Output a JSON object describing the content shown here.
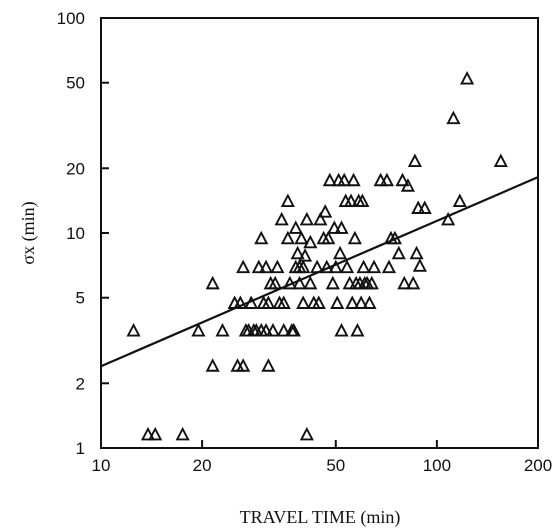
{
  "chart_data": {
    "type": "scatter",
    "xscale": "log",
    "yscale": "log",
    "xlim": [
      10,
      200
    ],
    "ylim": [
      1,
      100
    ],
    "xticks": [
      10,
      20,
      50,
      100,
      200
    ],
    "yticks": [
      1,
      2,
      5,
      10,
      20,
      50,
      100
    ],
    "xlabel": "TRAVEL TIME (min)",
    "ylabel": "σx (min)",
    "grid": false,
    "marker": "open-triangle",
    "points": [
      [
        12.5,
        3.5
      ],
      [
        13.8,
        1.15
      ],
      [
        14.5,
        1.15
      ],
      [
        17.5,
        1.15
      ],
      [
        19.5,
        3.5
      ],
      [
        21.5,
        5.8
      ],
      [
        21.5,
        2.4
      ],
      [
        23.0,
        3.5
      ],
      [
        25.0,
        4.7
      ],
      [
        25.5,
        2.4
      ],
      [
        26.0,
        4.7
      ],
      [
        26.5,
        6.9
      ],
      [
        26.5,
        2.4
      ],
      [
        27.0,
        3.5
      ],
      [
        27.5,
        3.5
      ],
      [
        28.0,
        4.7
      ],
      [
        28.5,
        3.5
      ],
      [
        29.0,
        3.5
      ],
      [
        29.5,
        6.9
      ],
      [
        30.0,
        9.4
      ],
      [
        30.0,
        3.5
      ],
      [
        30.5,
        4.7
      ],
      [
        31.0,
        6.9
      ],
      [
        31.0,
        3.5
      ],
      [
        31.5,
        4.7
      ],
      [
        31.5,
        2.4
      ],
      [
        32.0,
        5.8
      ],
      [
        32.5,
        3.5
      ],
      [
        33.0,
        5.8
      ],
      [
        33.5,
        6.9
      ],
      [
        34.0,
        4.7
      ],
      [
        34.5,
        11.5
      ],
      [
        35.0,
        4.7
      ],
      [
        35.0,
        3.5
      ],
      [
        36.0,
        14.0
      ],
      [
        36.0,
        9.4
      ],
      [
        36.5,
        5.8
      ],
      [
        37.0,
        3.5
      ],
      [
        37.5,
        3.5
      ],
      [
        38.0,
        6.9
      ],
      [
        38.0,
        10.5
      ],
      [
        38.5,
        8.0
      ],
      [
        39.0,
        6.9
      ],
      [
        39.0,
        5.8
      ],
      [
        39.5,
        9.4
      ],
      [
        40.0,
        6.9
      ],
      [
        40.0,
        4.7
      ],
      [
        40.5,
        7.8
      ],
      [
        41.0,
        1.15
      ],
      [
        41.0,
        11.5
      ],
      [
        42.0,
        9.0
      ],
      [
        42.0,
        5.8
      ],
      [
        43.0,
        4.7
      ],
      [
        44.0,
        6.9
      ],
      [
        44.5,
        4.7
      ],
      [
        45.0,
        11.5
      ],
      [
        46.0,
        9.4
      ],
      [
        46.5,
        12.5
      ],
      [
        47.0,
        6.9
      ],
      [
        47.5,
        9.4
      ],
      [
        48.0,
        17.5
      ],
      [
        49.0,
        5.8
      ],
      [
        49.5,
        10.5
      ],
      [
        50.0,
        6.9
      ],
      [
        50.5,
        4.7
      ],
      [
        51.0,
        17.5
      ],
      [
        51.5,
        8.0
      ],
      [
        52.0,
        10.5
      ],
      [
        52.0,
        3.5
      ],
      [
        53.0,
        17.5
      ],
      [
        53.5,
        14.0
      ],
      [
        54.0,
        6.9
      ],
      [
        55.0,
        5.8
      ],
      [
        55.5,
        14.0
      ],
      [
        56.0,
        4.7
      ],
      [
        56.5,
        17.5
      ],
      [
        57.0,
        9.4
      ],
      [
        57.5,
        5.8
      ],
      [
        58.0,
        3.5
      ],
      [
        58.5,
        14.0
      ],
      [
        59.0,
        5.8
      ],
      [
        59.5,
        4.7
      ],
      [
        60.0,
        14.0
      ],
      [
        60.5,
        6.9
      ],
      [
        61.0,
        5.8
      ],
      [
        62.0,
        5.8
      ],
      [
        63.0,
        4.7
      ],
      [
        64.0,
        5.8
      ],
      [
        65.0,
        6.9
      ],
      [
        68.0,
        17.5
      ],
      [
        71.0,
        17.5
      ],
      [
        72.0,
        6.9
      ],
      [
        73.0,
        9.4
      ],
      [
        75.0,
        9.4
      ],
      [
        77.0,
        8.0
      ],
      [
        79.0,
        17.5
      ],
      [
        80.0,
        5.8
      ],
      [
        82.0,
        16.5
      ],
      [
        85.0,
        5.8
      ],
      [
        86.0,
        21.5
      ],
      [
        87.0,
        8.0
      ],
      [
        88.0,
        13.0
      ],
      [
        89.0,
        7.0
      ],
      [
        92.0,
        13.0
      ],
      [
        108.0,
        11.5
      ],
      [
        112.0,
        34.0
      ],
      [
        117.0,
        14.0
      ],
      [
        123.0,
        52.0
      ],
      [
        155.0,
        21.5
      ]
    ],
    "fit_line": [
      [
        10,
        2.4
      ],
      [
        200,
        18.2
      ]
    ]
  }
}
